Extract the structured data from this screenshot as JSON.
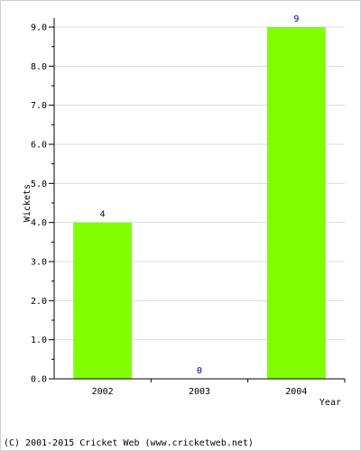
{
  "chart_data": {
    "type": "bar",
    "categories": [
      "2002",
      "2003",
      "2004"
    ],
    "values": [
      4,
      0,
      9
    ],
    "data_labels": [
      "4",
      "0",
      "9"
    ],
    "xlabel": "Year",
    "ylabel": "Wickets",
    "ylim": [
      0,
      9
    ],
    "yticks": [
      "0.0",
      "1.0",
      "2.0",
      "3.0",
      "4.0",
      "5.0",
      "6.0",
      "7.0",
      "8.0",
      "9.0"
    ],
    "grid": true,
    "bar_color": "#80ff00",
    "label_color": "#000080",
    "grid_color": "#dcdcdc"
  },
  "footer": {
    "text": "(C) 2001-2015 Cricket Web (www.cricketweb.net)"
  }
}
